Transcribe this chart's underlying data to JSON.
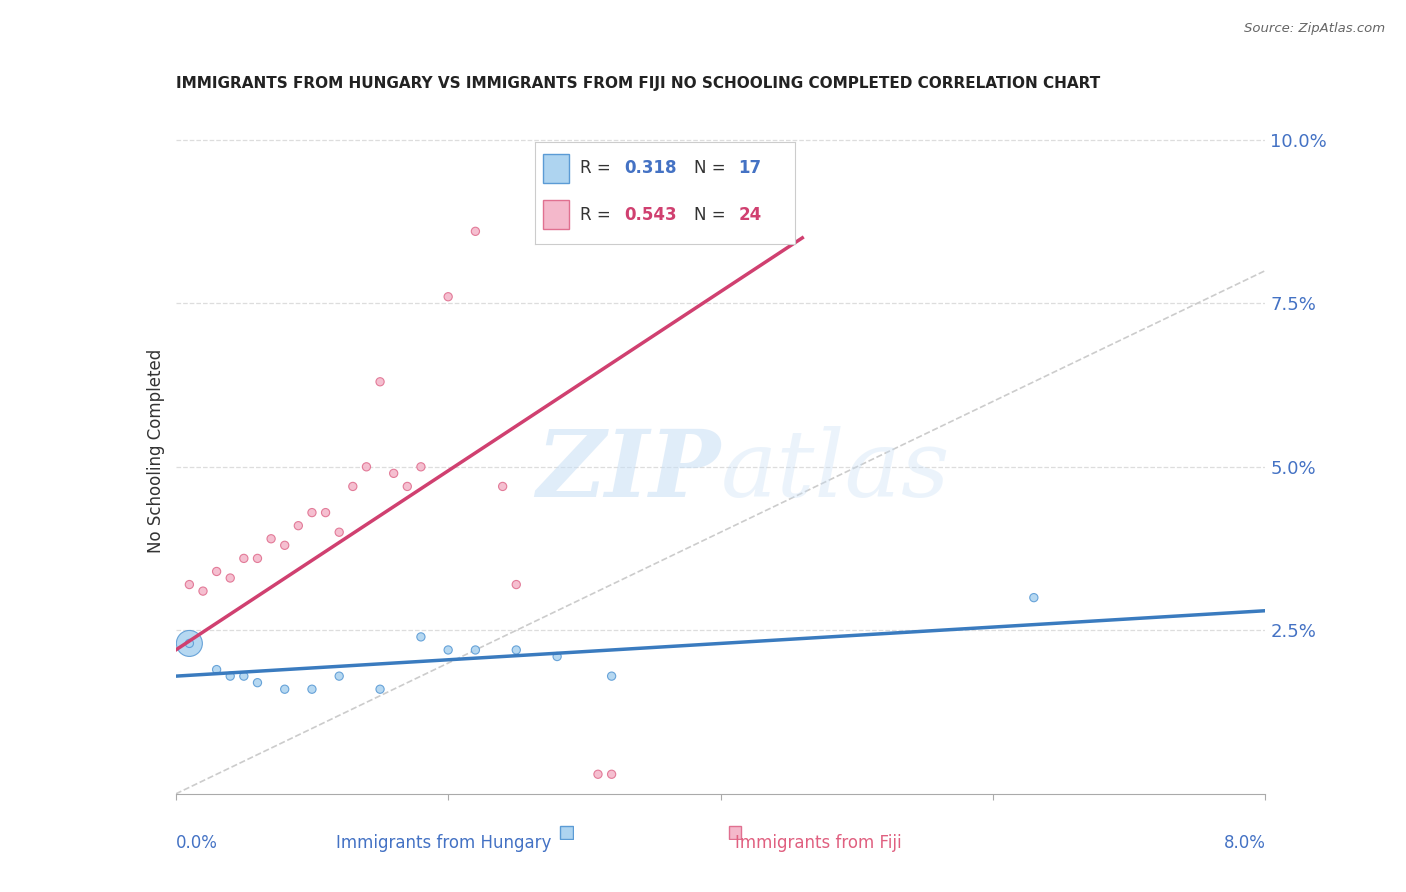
{
  "title": "IMMIGRANTS FROM HUNGARY VS IMMIGRANTS FROM FIJI NO SCHOOLING COMPLETED CORRELATION CHART",
  "source": "Source: ZipAtlas.com",
  "ylabel": "No Schooling Completed",
  "yticks": [
    0.0,
    0.025,
    0.05,
    0.075,
    0.1
  ],
  "ytick_labels": [
    "",
    "2.5%",
    "5.0%",
    "7.5%",
    "10.0%"
  ],
  "xlim": [
    0.0,
    0.08
  ],
  "ylim": [
    0.0,
    0.105
  ],
  "watermark": "ZIPatlas",
  "legend_hungary_R": "0.318",
  "legend_hungary_N": "17",
  "legend_fiji_R": "0.543",
  "legend_fiji_N": "24",
  "blue_fill": "#aed4f0",
  "pink_fill": "#f4b8cb",
  "blue_edge": "#5b9bd5",
  "pink_edge": "#e07090",
  "blue_line": "#3a7bbf",
  "pink_line": "#d04070",
  "diag_color": "#cccccc",
  "title_color": "#222222",
  "axis_color": "#4472c4",
  "text_color": "#333333",
  "hungary_x": [
    0.001,
    0.003,
    0.004,
    0.005,
    0.006,
    0.008,
    0.01,
    0.012,
    0.015,
    0.018,
    0.02,
    0.022,
    0.025,
    0.028,
    0.032,
    0.063,
    0.001
  ],
  "hungary_y": [
    0.023,
    0.019,
    0.018,
    0.018,
    0.017,
    0.016,
    0.016,
    0.018,
    0.016,
    0.024,
    0.022,
    0.022,
    0.022,
    0.021,
    0.018,
    0.03,
    0.023
  ],
  "hungary_s": [
    350,
    35,
    35,
    35,
    35,
    35,
    35,
    35,
    35,
    35,
    35,
    35,
    35,
    35,
    35,
    35,
    35
  ],
  "fiji_x": [
    0.001,
    0.002,
    0.003,
    0.004,
    0.005,
    0.006,
    0.007,
    0.008,
    0.009,
    0.01,
    0.011,
    0.012,
    0.013,
    0.014,
    0.015,
    0.016,
    0.017,
    0.018,
    0.02,
    0.022,
    0.024,
    0.025,
    0.031,
    0.032
  ],
  "fiji_y": [
    0.032,
    0.031,
    0.034,
    0.033,
    0.036,
    0.036,
    0.039,
    0.038,
    0.041,
    0.043,
    0.043,
    0.04,
    0.047,
    0.05,
    0.063,
    0.049,
    0.047,
    0.05,
    0.076,
    0.086,
    0.047,
    0.032,
    0.003,
    0.003
  ],
  "fiji_s": [
    35,
    35,
    35,
    35,
    35,
    35,
    35,
    35,
    35,
    35,
    35,
    35,
    35,
    35,
    35,
    35,
    35,
    35,
    35,
    35,
    35,
    35,
    35,
    35
  ],
  "hungary_line_x": [
    0.0,
    0.08
  ],
  "hungary_line_y": [
    0.018,
    0.028
  ],
  "fiji_line_x": [
    0.0,
    0.046
  ],
  "fiji_line_y": [
    0.022,
    0.085
  ]
}
